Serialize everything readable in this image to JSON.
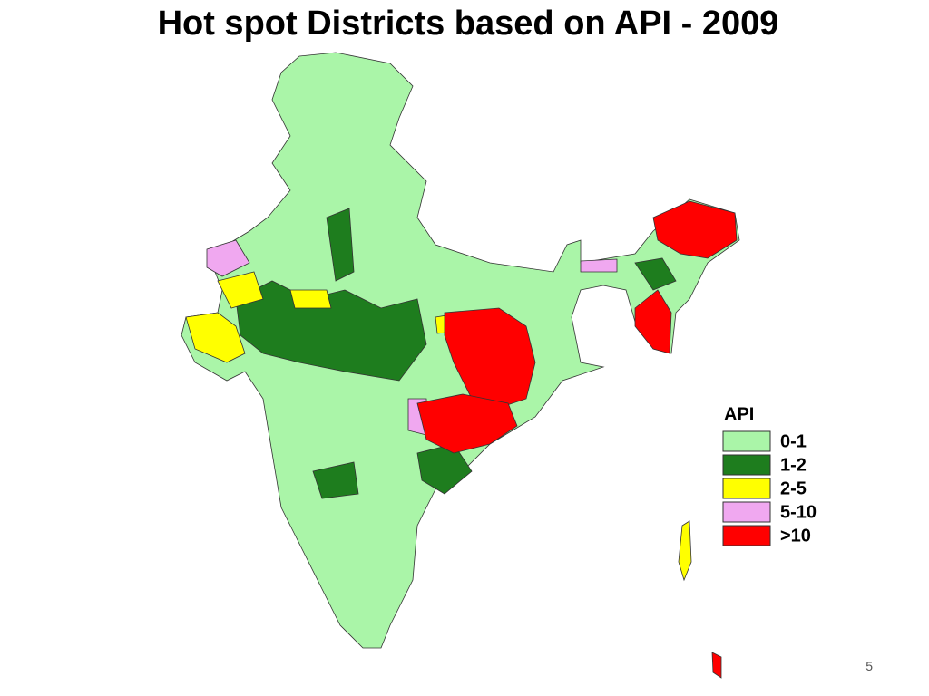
{
  "title": "Hot spot Districts based on API - 2009",
  "legend": {
    "title": "API",
    "items": [
      {
        "label": "0-1",
        "color": "#aaf5a8"
      },
      {
        "label": "1-2",
        "color": "#1e7d1e"
      },
      {
        "label": "2-5",
        "color": "#ffff00"
      },
      {
        "label": "5-10",
        "color": "#f0a8f0"
      },
      {
        "label": ">10",
        "color": "#ff0000"
      }
    ]
  },
  "page_number": "5"
}
